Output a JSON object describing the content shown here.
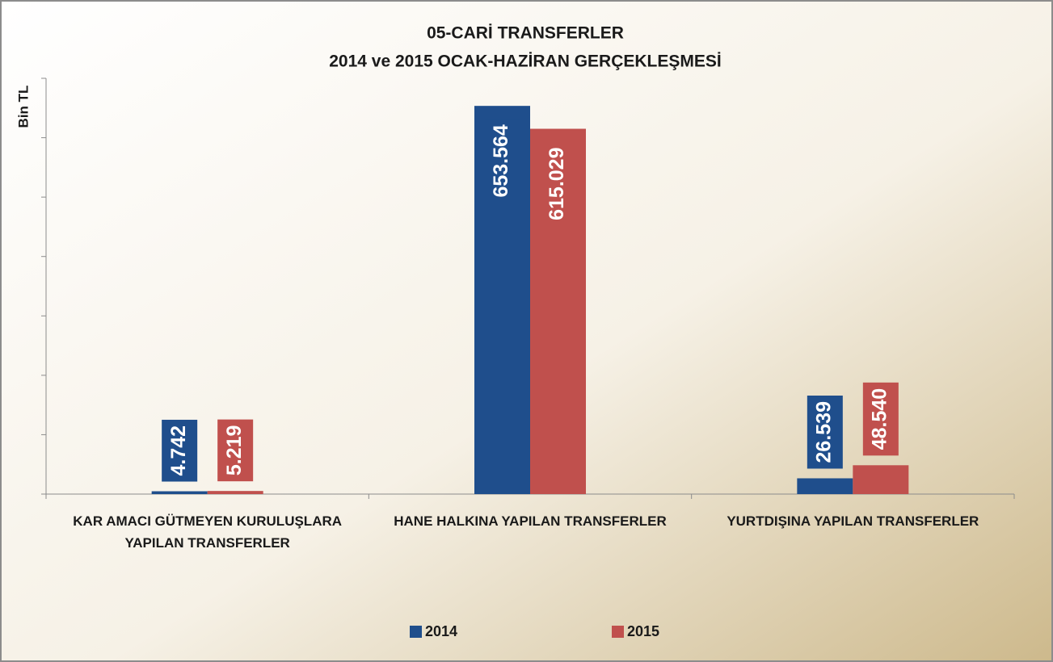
{
  "chart_data": {
    "type": "bar",
    "title": "05-CARİ TRANSFERLER",
    "subtitle": "2014 ve 2015 OCAK-HAZİRAN GERÇEKLEŞMESİ",
    "y_label": "Bin TL",
    "categories": [
      "KAR AMACI GÜTMEYEN KURULUŞLARA YAPILAN TRANSFERLER",
      "HANE HALKINA YAPILAN TRANSFERLER",
      "YURTDIŞINA YAPILAN TRANSFERLER"
    ],
    "series": [
      {
        "name": "2014",
        "color": "#1f4e8c",
        "values": [
          4742,
          653564,
          26539
        ],
        "value_labels": [
          "4.742",
          "653.564",
          "26.539"
        ]
      },
      {
        "name": "2015",
        "color": "#c0504d",
        "values": [
          5219,
          615029,
          48540
        ],
        "value_labels": [
          "5.219",
          "615.029",
          "48.540"
        ]
      }
    ],
    "ylim": [
      0,
      700000
    ],
    "yticks": [
      0,
      100000,
      200000,
      300000,
      400000,
      500000,
      600000,
      700000
    ]
  }
}
